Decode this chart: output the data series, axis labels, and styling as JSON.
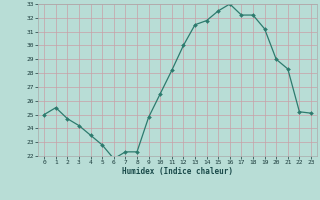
{
  "x": [
    0,
    1,
    2,
    3,
    4,
    5,
    6,
    7,
    8,
    9,
    10,
    11,
    12,
    13,
    14,
    15,
    16,
    17,
    18,
    19,
    20,
    21,
    22,
    23
  ],
  "y": [
    25.0,
    25.5,
    24.7,
    24.2,
    23.5,
    22.8,
    21.8,
    22.3,
    22.3,
    24.8,
    26.5,
    28.2,
    30.0,
    31.5,
    31.8,
    32.5,
    33.0,
    32.2,
    32.2,
    31.2,
    29.0,
    28.3,
    25.2,
    25.1
  ],
  "xlabel": "Humidex (Indice chaleur)",
  "ylim": [
    22,
    33
  ],
  "xlim": [
    -0.5,
    23.5
  ],
  "yticks": [
    22,
    23,
    24,
    25,
    26,
    27,
    28,
    29,
    30,
    31,
    32,
    33
  ],
  "xticks": [
    0,
    1,
    2,
    3,
    4,
    5,
    6,
    7,
    8,
    9,
    10,
    11,
    12,
    13,
    14,
    15,
    16,
    17,
    18,
    19,
    20,
    21,
    22,
    23
  ],
  "line_color": "#2d7b6e",
  "marker_color": "#2d7b6e",
  "bg_color": "#b8ddd6",
  "grid_color": "#c8d8d4",
  "label_color": "#1a4a4a",
  "tick_color": "#1a3a3a"
}
